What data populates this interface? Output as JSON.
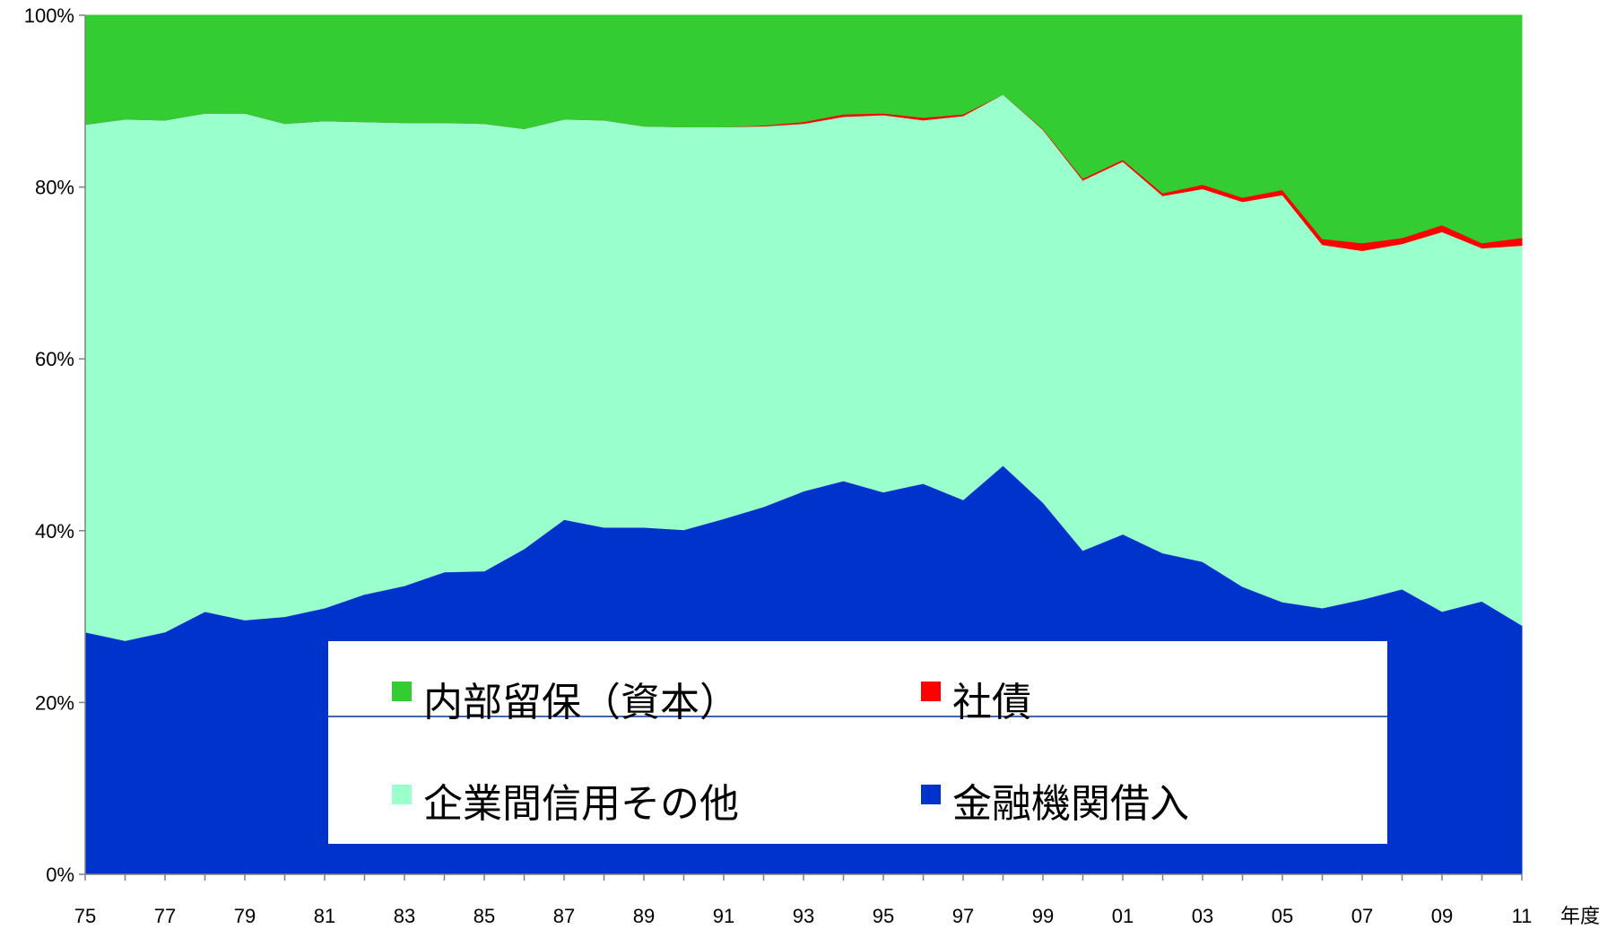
{
  "chart_data": {
    "type": "area",
    "stacked": true,
    "percent": true,
    "xlabel": "年度",
    "ylabel": "",
    "ylim": [
      0,
      100
    ],
    "y_ticks": [
      "0%",
      "20%",
      "40%",
      "60%",
      "80%",
      "100%"
    ],
    "x_tick_labels": [
      "75",
      "77",
      "79",
      "81",
      "83",
      "85",
      "87",
      "89",
      "91",
      "93",
      "95",
      "97",
      "99",
      "01",
      "03",
      "05",
      "07",
      "09",
      "11"
    ],
    "x": [
      "75",
      "76",
      "77",
      "78",
      "79",
      "80",
      "81",
      "82",
      "83",
      "84",
      "85",
      "86",
      "87",
      "88",
      "89",
      "90",
      "91",
      "92",
      "93",
      "94",
      "95",
      "96",
      "97",
      "98",
      "99",
      "00",
      "01",
      "02",
      "03",
      "04",
      "05",
      "06",
      "07",
      "08",
      "09",
      "10",
      "11"
    ],
    "legend_position": "inside-bottom",
    "series": [
      {
        "name": "金融機関借入",
        "color": "#0033cc",
        "values": [
          28.2,
          27.2,
          28.2,
          30.6,
          29.6,
          30.0,
          31.0,
          32.6,
          33.6,
          35.2,
          35.3,
          37.9,
          41.3,
          40.4,
          40.4,
          40.1,
          41.4,
          42.8,
          44.6,
          45.8,
          44.5,
          45.5,
          43.6,
          47.6,
          43.3,
          37.7,
          39.6,
          37.4,
          36.4,
          33.5,
          31.7,
          31.0,
          32.0,
          33.2,
          30.6,
          31.8,
          29.0
        ]
      },
      {
        "name": "企業間信用その他",
        "color": "#99ffcc",
        "values": [
          59.1,
          60.7,
          59.6,
          58.0,
          59.0,
          57.4,
          56.7,
          55.0,
          53.9,
          52.3,
          52.1,
          48.9,
          46.6,
          47.4,
          46.7,
          46.9,
          45.6,
          44.3,
          42.8,
          42.4,
          43.9,
          42.3,
          44.7,
          43.2,
          43.4,
          43.1,
          43.4,
          41.6,
          43.4,
          44.8,
          47.4,
          42.3,
          40.6,
          40.2,
          44.2,
          41.1,
          44.2
        ]
      },
      {
        "name": "社債",
        "color": "#ff0000",
        "values": [
          0,
          0,
          0,
          0,
          0,
          0,
          0,
          0,
          0,
          0,
          0,
          0,
          0,
          0,
          0,
          0,
          0,
          0.1,
          0.2,
          0.3,
          0.2,
          0.3,
          0.2,
          0,
          0.1,
          0.2,
          0.2,
          0.3,
          0.5,
          0.5,
          0.6,
          0.7,
          0.9,
          0.7,
          0.8,
          0.6,
          0.9
        ]
      },
      {
        "name": "内部留保（資本）",
        "color": "#33cc33",
        "values": [
          12.7,
          12.1,
          12.2,
          11.4,
          11.4,
          12.6,
          12.3,
          12.4,
          12.5,
          12.5,
          12.6,
          13.2,
          12.1,
          12.2,
          12.9,
          13.0,
          13.0,
          12.8,
          12.4,
          11.5,
          11.4,
          11.9,
          11.5,
          9.2,
          13.2,
          19.0,
          16.8,
          20.7,
          19.7,
          21.2,
          20.3,
          26.0,
          26.5,
          25.9,
          24.4,
          26.5,
          25.9
        ]
      }
    ],
    "legend": {
      "row1_left": "内部留保（資本）",
      "row1_right": "社債",
      "row2_left": "企業間信用その他",
      "row2_right": "金融機関借入"
    }
  }
}
